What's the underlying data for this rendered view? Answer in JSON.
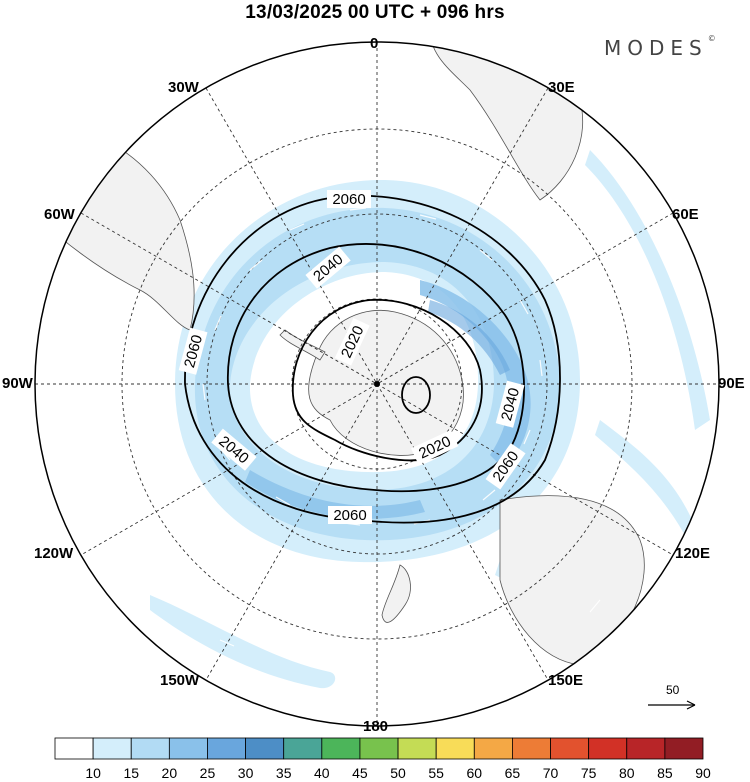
{
  "header": {
    "title": "13/03/2025  00 UTC  + 096 hrs"
  },
  "brand": {
    "name": "MODES",
    "mark": "©"
  },
  "map": {
    "projection": "south-polar-stereographic",
    "longitude_labels": {
      "lon_0": "0",
      "lon_30e": "30E",
      "lon_60e": "60E",
      "lon_90e": "90E",
      "lon_120e": "120E",
      "lon_150e": "150E",
      "lon_180": "180",
      "lon_150w": "150W",
      "lon_120w": "120W",
      "lon_90w": "90W",
      "lon_60w": "60W",
      "lon_30w": "30W"
    },
    "contour_labels": {
      "c1": "2060",
      "c2": "2040",
      "c3": "2020",
      "c4": "2060",
      "c5": "2040",
      "c6": "2020",
      "c7": "2040",
      "c8": "2060",
      "c9": "2060"
    },
    "contour_color": "#000000",
    "land_color": "#f2f2f2",
    "coast_color": "#555555",
    "grid_style": "dashed",
    "reference_vector": {
      "label": "50",
      "value": 50
    }
  },
  "colorbar": {
    "labels": [
      "10",
      "15",
      "20",
      "25",
      "30",
      "35",
      "40",
      "45",
      "50",
      "55",
      "60",
      "65",
      "70",
      "75",
      "80",
      "85",
      "90"
    ],
    "colors": [
      "#ffffff",
      "#d4eefb",
      "#b2dbf4",
      "#8ac1ea",
      "#69a6dd",
      "#4d8ec6",
      "#4aa597",
      "#4cb55a",
      "#78c24d",
      "#c4dc55",
      "#f8dc58",
      "#f4a845",
      "#ed7c36",
      "#e2522e",
      "#d23126",
      "#b82528",
      "#921d24"
    ]
  }
}
